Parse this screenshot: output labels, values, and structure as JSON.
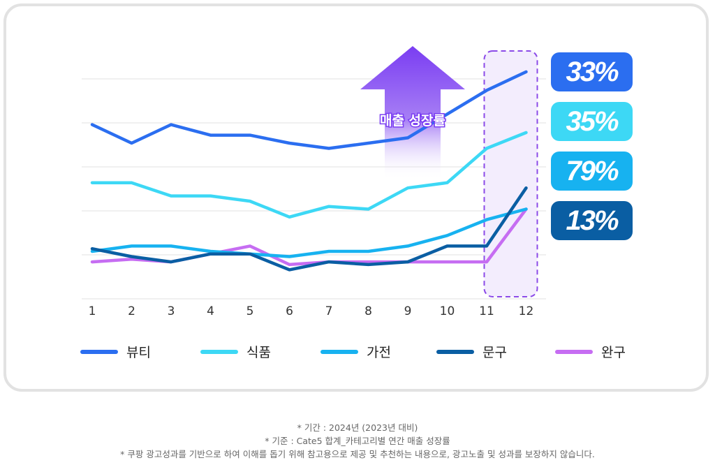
{
  "chart_data": {
    "type": "line",
    "categories": [
      "1",
      "2",
      "3",
      "4",
      "5",
      "6",
      "7",
      "8",
      "9",
      "10",
      "11",
      "12"
    ],
    "ylim": [
      0,
      100
    ],
    "grid": true,
    "series": [
      {
        "name": "뷰티",
        "color": "#2b6ef0",
        "values": [
          66,
          59,
          66,
          62,
          62,
          59,
          57,
          59,
          61,
          70,
          79,
          86
        ],
        "growth": "33%"
      },
      {
        "name": "식품",
        "color": "#3dd8f5",
        "values": [
          44,
          44,
          39,
          39,
          37,
          31,
          35,
          34,
          42,
          44,
          57,
          63
        ],
        "growth": "35%"
      },
      {
        "name": "가전",
        "color": "#17b2f0",
        "values": [
          18,
          20,
          20,
          18,
          17,
          16,
          18,
          18,
          20,
          24,
          30,
          34
        ],
        "growth": "79%"
      },
      {
        "name": "문구",
        "color": "#0a5ea3",
        "values": [
          19,
          16,
          14,
          17,
          17,
          11,
          14,
          13,
          14,
          20,
          20,
          42
        ],
        "growth": "13%"
      },
      {
        "name": "완구",
        "color": "#c66df2",
        "values": [
          14,
          15,
          14,
          17,
          20,
          13,
          14,
          14,
          14,
          14,
          14,
          34
        ],
        "growth": null
      }
    ],
    "highlight_category": "12",
    "annotation": "매출 성장률"
  },
  "badges": [
    {
      "label": "33%",
      "color": "#2b6ef0"
    },
    {
      "label": "35%",
      "color": "#3dd8f5"
    },
    {
      "label": "79%",
      "color": "#17b2f0"
    },
    {
      "label": "13%",
      "color": "#0a5ea3"
    }
  ],
  "footnotes": [
    "* 기간 : 2024년 (2023년 대비)",
    "* 기준 : Cate5 합계_카테고리별 연간 매출 성장률",
    "* 쿠팡 광고성과를 기반으로 하여 이해를 돕기 위해 참고용으로 제공 및 추천하는 내용으로, 광고노출 및 성과를 보장하지 않습니다."
  ]
}
